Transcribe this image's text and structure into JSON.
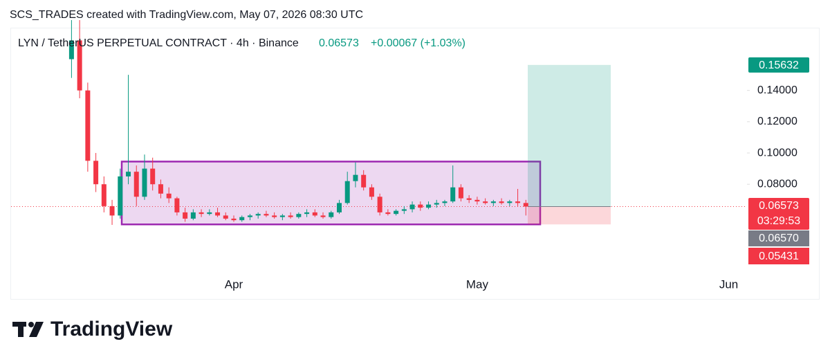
{
  "watermark": "SCS_TRADES created with TradingView.com, May 07, 2026 08:30 UTC",
  "logo": "TradingView",
  "chart_data": {
    "type": "candlestick",
    "title": "LYN / TetherUS PERPETUAL CONTRACT · 4h · Binance",
    "header_price": "0.06573",
    "header_change": "+0.00067 (+1.03%)",
    "up_color": "#089981",
    "down_color": "#f23645",
    "categories": [
      null,
      null,
      null,
      null,
      null,
      null,
      null,
      null,
      null,
      null,
      null,
      null,
      null,
      null,
      null,
      null,
      null,
      null,
      null,
      null,
      "Apr",
      null,
      null,
      null,
      null,
      null,
      null,
      null,
      null,
      null,
      null,
      null,
      null,
      null,
      null,
      null,
      null,
      null,
      null,
      null,
      null,
      null,
      null,
      null,
      null,
      null,
      null,
      null,
      null,
      null,
      "May",
      null,
      null,
      null,
      null,
      null,
      null,
      null,
      null,
      null,
      null,
      null,
      null,
      null,
      null,
      null,
      null,
      null,
      null,
      null,
      null,
      null,
      null,
      null,
      null,
      null,
      null,
      null,
      null,
      null,
      null,
      "Jun"
    ],
    "open": [
      0.16,
      0.172,
      0.14,
      0.095,
      0.08,
      0.066,
      0.06,
      0.085,
      0.088,
      0.072,
      0.09,
      0.08,
      0.074,
      0.071,
      0.062,
      0.058,
      0.062,
      0.061,
      0.062,
      0.06,
      0.058,
      0.057,
      0.059,
      0.06,
      0.061,
      0.06,
      0.059,
      0.06,
      0.059,
      0.061,
      0.062,
      0.06,
      0.059,
      0.062,
      0.068,
      0.082,
      0.086,
      0.078,
      0.072,
      0.062,
      0.061,
      0.063,
      0.064,
      0.067,
      0.065,
      0.067,
      0.068,
      0.069,
      0.078,
      0.071,
      0.07,
      0.069,
      0.068,
      0.069,
      0.068,
      0.069,
      0.068,
      null,
      null,
      null,
      null,
      null,
      null,
      null,
      null,
      null,
      null,
      null,
      null,
      null,
      null,
      null,
      null,
      null,
      null,
      null,
      null,
      null,
      null,
      null,
      null,
      null
    ],
    "high": [
      0.185,
      0.185,
      0.145,
      0.1,
      0.085,
      0.07,
      0.09,
      0.15,
      0.092,
      0.099,
      0.097,
      0.083,
      0.078,
      0.072,
      0.065,
      0.064,
      0.064,
      0.064,
      0.065,
      0.062,
      0.06,
      0.06,
      0.061,
      0.062,
      0.063,
      0.062,
      0.061,
      0.062,
      0.062,
      0.064,
      0.064,
      0.062,
      0.063,
      0.07,
      0.088,
      0.094,
      0.089,
      0.08,
      0.074,
      0.064,
      0.064,
      0.066,
      0.069,
      0.069,
      0.069,
      0.07,
      0.07,
      0.092,
      0.08,
      0.073,
      0.072,
      0.071,
      0.07,
      0.071,
      0.07,
      0.077,
      0.07,
      null,
      null,
      null,
      null,
      null,
      null,
      null,
      null,
      null,
      null,
      null,
      null,
      null,
      null,
      null,
      null,
      null,
      null,
      null,
      null,
      null,
      null,
      null,
      null,
      null
    ],
    "low": [
      0.148,
      0.135,
      0.088,
      0.075,
      0.062,
      0.054,
      0.058,
      0.08,
      0.066,
      0.07,
      0.076,
      0.071,
      0.068,
      0.06,
      0.056,
      0.057,
      0.059,
      0.06,
      0.059,
      0.057,
      0.056,
      0.056,
      0.057,
      0.058,
      0.059,
      0.058,
      0.057,
      0.058,
      0.058,
      0.059,
      0.059,
      0.058,
      0.058,
      0.061,
      0.067,
      0.078,
      0.076,
      0.07,
      0.06,
      0.06,
      0.06,
      0.061,
      0.062,
      0.063,
      0.064,
      0.065,
      0.066,
      0.068,
      0.069,
      0.068,
      0.067,
      0.067,
      0.066,
      0.067,
      0.066,
      0.066,
      0.06,
      null,
      null,
      null,
      null,
      null,
      null,
      null,
      null,
      null,
      null,
      null,
      null,
      null,
      null,
      null,
      null,
      null,
      null,
      null,
      null,
      null,
      null,
      null,
      null,
      null
    ],
    "close": [
      0.172,
      0.14,
      0.095,
      0.08,
      0.066,
      0.06,
      0.085,
      0.088,
      0.072,
      0.09,
      0.08,
      0.074,
      0.071,
      0.062,
      0.058,
      0.062,
      0.061,
      0.062,
      0.06,
      0.058,
      0.057,
      0.059,
      0.06,
      0.061,
      0.06,
      0.059,
      0.06,
      0.059,
      0.061,
      0.062,
      0.06,
      0.059,
      0.062,
      0.068,
      0.082,
      0.086,
      0.078,
      0.072,
      0.062,
      0.061,
      0.063,
      0.064,
      0.067,
      0.065,
      0.067,
      0.068,
      0.069,
      0.078,
      0.071,
      0.07,
      0.069,
      0.068,
      0.069,
      0.068,
      0.069,
      0.068,
      0.06573,
      null,
      null,
      null,
      null,
      null,
      null,
      null,
      null,
      null,
      null,
      null,
      null,
      null,
      null,
      null,
      null,
      null,
      null,
      null,
      null,
      null,
      null,
      null,
      null,
      null
    ],
    "ylim": [
      0.023,
      0.1797
    ],
    "yticks": [
      {
        "value": 0.08,
        "label": "0.08000"
      },
      {
        "value": 0.1,
        "label": "0.10000"
      },
      {
        "value": 0.12,
        "label": "0.12000"
      },
      {
        "value": 0.14,
        "label": "0.14000"
      }
    ],
    "range_box": {
      "top": 0.0945,
      "bottom": 0.05431,
      "color": "#9c27b0"
    },
    "position": {
      "target": 0.15632,
      "entry": 0.06573,
      "stop": 0.05431
    },
    "price_labels": {
      "target": 0.15632,
      "last": 0.06573,
      "countdown": "03:29:53",
      "mark": {
        "value": 0.0657,
        "label": "0.06570"
      },
      "stop": 0.05431
    }
  }
}
